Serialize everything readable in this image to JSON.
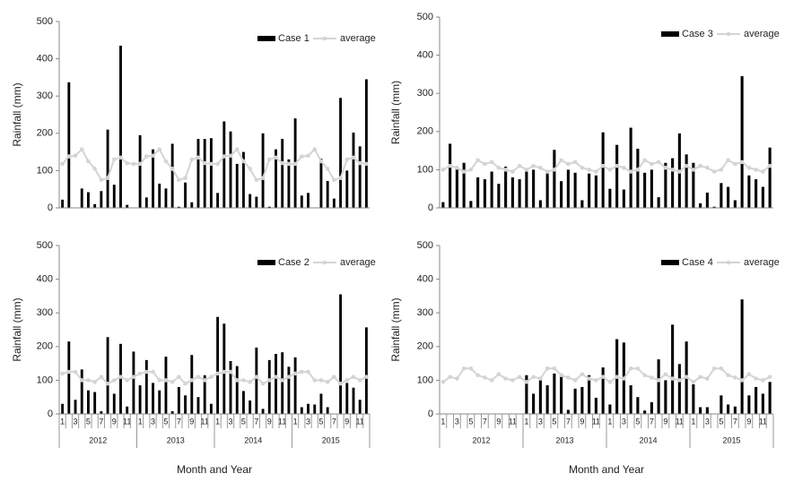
{
  "chart_data": [
    {
      "type": "bar",
      "ylabel": "Rainfall (mm)",
      "ylim": [
        0,
        500
      ],
      "yticks": [
        0,
        100,
        200,
        300,
        400,
        500
      ],
      "series": [
        {
          "name": "Case 1",
          "color": "#000000",
          "values": [
            22,
            337,
            0,
            52,
            42,
            10,
            45,
            210,
            62,
            435,
            8,
            0,
            195,
            28,
            157,
            65,
            52,
            172,
            3,
            68,
            15,
            185,
            185,
            187,
            40,
            232,
            205,
            118,
            150,
            37,
            30,
            200,
            3,
            157,
            185,
            130,
            240,
            33,
            40,
            0,
            132,
            72,
            25,
            295,
            100,
            202,
            165,
            345
          ]
        },
        {
          "name": "average",
          "color": "#d4d4d4",
          "values": [
            118,
            138,
            140,
            157,
            125,
            105,
            75,
            80,
            130,
            135,
            120,
            118,
            118,
            138,
            140,
            157,
            125,
            105,
            75,
            80,
            130,
            135,
            120,
            118,
            118,
            138,
            140,
            157,
            125,
            105,
            75,
            80,
            130,
            135,
            120,
            118,
            118,
            138,
            140,
            157,
            125,
            105,
            75,
            80,
            130,
            135,
            120,
            118
          ]
        }
      ]
    },
    {
      "type": "bar",
      "ylabel": "Rainfall (mm)",
      "xlabel": "Month and Year",
      "ylim": [
        0,
        500
      ],
      "yticks": [
        0,
        100,
        200,
        300,
        400,
        500
      ],
      "categories": [
        "1",
        null,
        "3",
        null,
        "5",
        null,
        "7",
        null,
        "9",
        null,
        "11",
        null,
        "1",
        null,
        "3",
        null,
        "5",
        null,
        "7",
        null,
        "9",
        null,
        "11",
        null,
        "1",
        null,
        "3",
        null,
        "5",
        null,
        "7",
        null,
        "9",
        null,
        "11",
        null,
        "1",
        null,
        "3",
        null,
        "5",
        null,
        "7",
        null,
        "9",
        null,
        "11",
        null
      ],
      "groups": [
        "2012",
        "2013",
        "2014",
        "2015"
      ],
      "series": [
        {
          "name": "Case 2",
          "color": "#000000",
          "values": [
            30,
            215,
            42,
            132,
            70,
            65,
            8,
            228,
            60,
            208,
            22,
            185,
            85,
            160,
            92,
            70,
            170,
            8,
            80,
            55,
            175,
            50,
            115,
            30,
            288,
            268,
            157,
            142,
            68,
            40,
            197,
            15,
            160,
            178,
            183,
            140,
            168,
            20,
            30,
            28,
            60,
            20,
            0,
            355,
            92,
            78,
            42,
            257
          ]
        },
        {
          "name": "average",
          "color": "#d4d4d4",
          "values": [
            120,
            125,
            125,
            100,
            100,
            95,
            110,
            90,
            100,
            110,
            100,
            110,
            120,
            125,
            125,
            100,
            100,
            95,
            110,
            90,
            100,
            110,
            100,
            110,
            120,
            125,
            125,
            100,
            100,
            95,
            110,
            90,
            100,
            110,
            100,
            110,
            120,
            125,
            125,
            100,
            100,
            95,
            110,
            90,
            100,
            110,
            100,
            110
          ]
        }
      ]
    },
    {
      "type": "bar",
      "ylabel": "Rainfall (mm)",
      "ylim": [
        0,
        500
      ],
      "yticks": [
        0,
        100,
        200,
        300,
        400,
        500
      ],
      "series": [
        {
          "name": "Case 3",
          "color": "#000000",
          "values": [
            15,
            168,
            105,
            118,
            18,
            80,
            75,
            95,
            63,
            108,
            80,
            75,
            95,
            100,
            20,
            90,
            152,
            70,
            100,
            92,
            20,
            90,
            85,
            198,
            50,
            165,
            48,
            210,
            155,
            92,
            100,
            28,
            118,
            130,
            195,
            140,
            118,
            12,
            40,
            3,
            65,
            55,
            20,
            345,
            85,
            75,
            55,
            158
          ]
        },
        {
          "name": "average",
          "color": "#d4d4d4",
          "values": [
            100,
            110,
            105,
            95,
            100,
            125,
            115,
            120,
            105,
            100,
            95,
            110,
            100,
            110,
            105,
            95,
            100,
            125,
            115,
            120,
            105,
            100,
            95,
            110,
            100,
            110,
            105,
            95,
            100,
            125,
            115,
            120,
            105,
            100,
            95,
            110,
            100,
            110,
            105,
            95,
            100,
            125,
            115,
            120,
            105,
            100,
            95,
            110
          ]
        }
      ]
    },
    {
      "type": "bar",
      "ylabel": "Rainfall (mm)",
      "xlabel": "Month and Year",
      "ylim": [
        0,
        500
      ],
      "yticks": [
        0,
        100,
        200,
        300,
        400,
        500
      ],
      "categories": [
        "1",
        null,
        "3",
        null,
        "5",
        null,
        "7",
        null,
        "9",
        null,
        "11",
        null,
        "1",
        null,
        "3",
        null,
        "5",
        null,
        "7",
        null,
        "9",
        null,
        "11",
        null,
        "1",
        null,
        "3",
        null,
        "5",
        null,
        "7",
        null,
        "9",
        null,
        "11",
        null,
        "1",
        null,
        "3",
        null,
        "5",
        null,
        "7",
        null,
        "9",
        null,
        "11",
        null
      ],
      "groups": [
        "2012",
        "2013",
        "2014",
        "2015"
      ],
      "series": [
        {
          "name": "Case 4",
          "color": "#000000",
          "values": [
            null,
            null,
            null,
            null,
            null,
            null,
            null,
            null,
            null,
            null,
            null,
            null,
            115,
            60,
            110,
            85,
            120,
            120,
            12,
            75,
            80,
            115,
            48,
            138,
            28,
            222,
            212,
            85,
            50,
            10,
            35,
            162,
            100,
            265,
            148,
            215,
            88,
            20,
            20,
            0,
            55,
            28,
            22,
            340,
            55,
            80,
            60,
            95
          ]
        },
        {
          "name": "average",
          "color": "#d4d4d4",
          "values": [
            95,
            110,
            105,
            135,
            135,
            115,
            108,
            100,
            118,
            105,
            100,
            110,
            95,
            110,
            105,
            135,
            135,
            115,
            108,
            100,
            118,
            105,
            100,
            110,
            95,
            110,
            105,
            135,
            135,
            115,
            108,
            100,
            118,
            105,
            100,
            110,
            95,
            110,
            105,
            135,
            135,
            115,
            108,
            100,
            118,
            105,
            100,
            110
          ]
        }
      ]
    }
  ]
}
